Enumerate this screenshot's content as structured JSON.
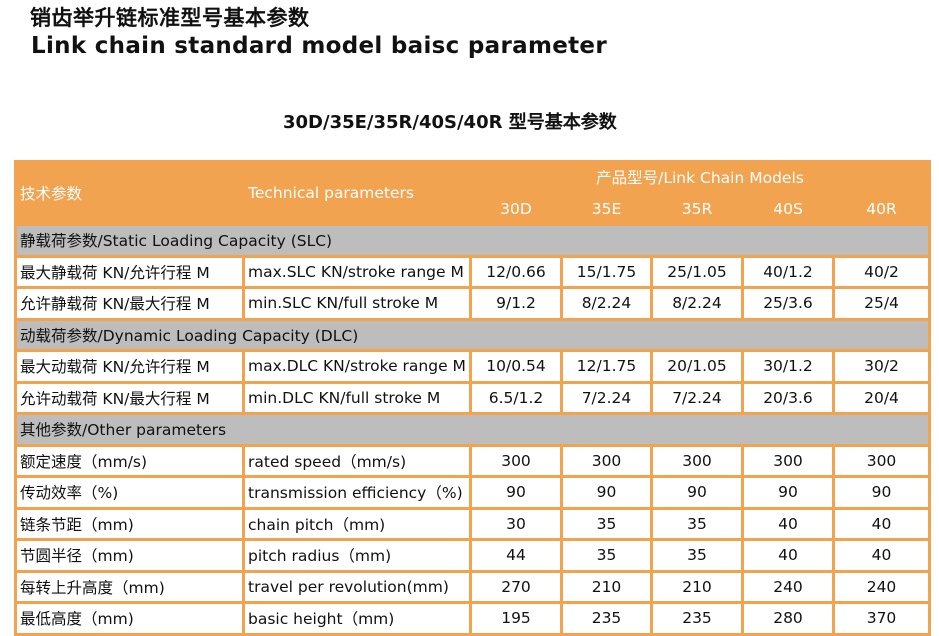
{
  "title_cn": "销齿举升链标准型号基本参数",
  "title_en": "Link chain standard model baisc parameter",
  "subtitle": "30D/35E/35R/40S/40R 型号基本参数",
  "colors": {
    "header": "#f2a350",
    "section": "#bdbdbd"
  },
  "header": {
    "cn": "技术参数",
    "en": "Technical parameters",
    "models_label": "产品型号/Link Chain Models",
    "models": [
      "30D",
      "35E",
      "35R",
      "40S",
      "40R"
    ]
  },
  "sections": [
    {
      "title": "静载荷参数/Static Loading Capacity (SLC)",
      "rows": [
        {
          "cn": "最大静载荷 KN/允许行程 M",
          "en": "max.SLC KN/stroke range M",
          "values": [
            "12/0.66",
            "15/1.75",
            "25/1.05",
            "40/1.2",
            "40/2"
          ]
        },
        {
          "cn": "允许静载荷 KN/最大行程 M",
          "en": "min.SLC KN/full stroke M",
          "values": [
            "9/1.2",
            "8/2.24",
            "8/2.24",
            "25/3.6",
            "25/4"
          ]
        }
      ]
    },
    {
      "title": "动载荷参数/Dynamic Loading Capacity (DLC)",
      "rows": [
        {
          "cn": "最大动载荷 KN/允许行程 M",
          "en": "max.DLC KN/stroke range M",
          "values": [
            "10/0.54",
            "12/1.75",
            "20/1.05",
            "30/1.2",
            "30/2"
          ]
        },
        {
          "cn": "允许动载荷 KN/最大行程 M",
          "en": "min.DLC KN/full stroke M",
          "values": [
            "6.5/1.2",
            "7/2.24",
            "7/2.24",
            "20/3.6",
            "20/4"
          ]
        }
      ]
    },
    {
      "title": "其他参数/Other parameters",
      "rows": [
        {
          "cn": "额定速度（mm/s)",
          "en": "rated speed（mm/s)",
          "values": [
            "300",
            "300",
            "300",
            "300",
            "300"
          ]
        },
        {
          "cn": "传动效率（%)",
          "en": "transmission efficiency（%)",
          "values": [
            "90",
            "90",
            "90",
            "90",
            "90"
          ]
        },
        {
          "cn": "链条节距（mm)",
          "en": "chain pitch（mm)",
          "values": [
            "30",
            "35",
            "35",
            "40",
            "40"
          ]
        },
        {
          "cn": "节圆半径（mm)",
          "en": "pitch radius（mm)",
          "values": [
            "44",
            "35",
            "35",
            "40",
            "40"
          ]
        },
        {
          "cn": "每转上升高度（mm)",
          "en": "travel per revolution(mm)",
          "values": [
            "270",
            "210",
            "210",
            "240",
            "240"
          ]
        },
        {
          "cn": "最低高度（mm)",
          "en": "basic height（mm)",
          "values": [
            "195",
            "235",
            "235",
            "280",
            "370"
          ]
        }
      ]
    }
  ]
}
